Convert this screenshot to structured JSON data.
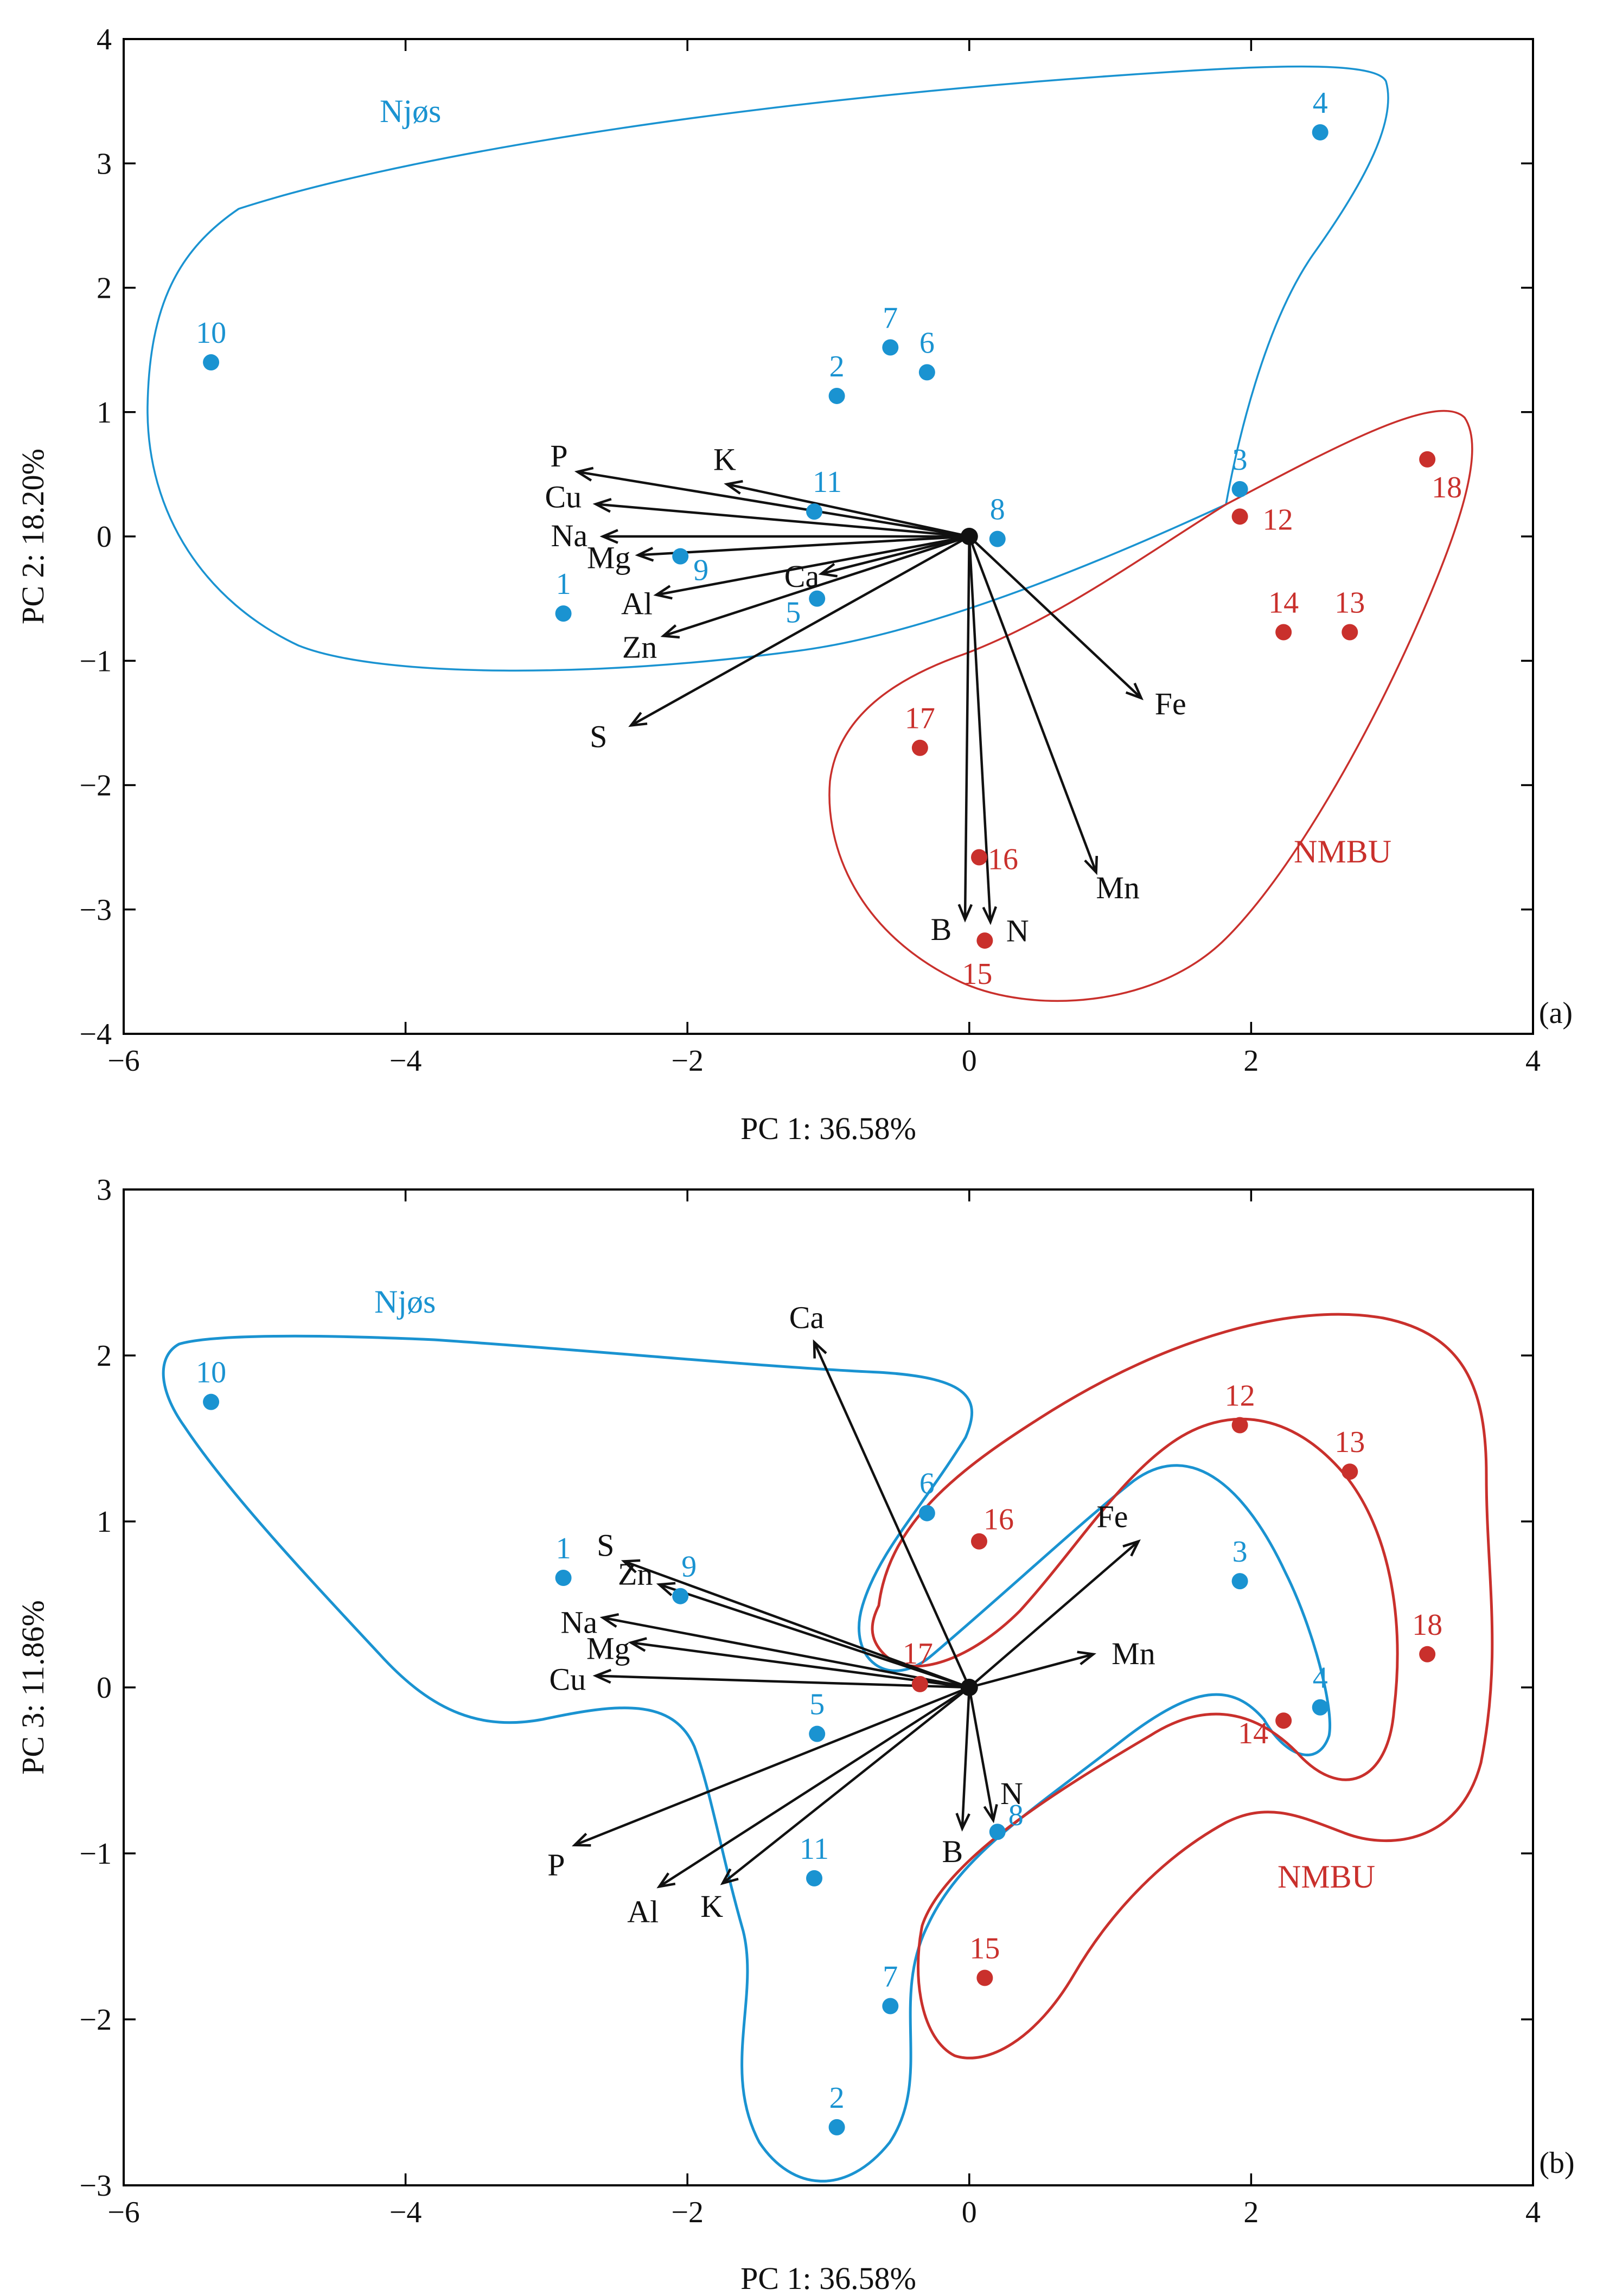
{
  "colors": {
    "njos": "#1a93d1",
    "nmbu": "#c9302c",
    "ink": "#111111"
  },
  "chart_data": [
    {
      "type": "scatter",
      "panel": "(a)",
      "xlabel": "PC 1: 36.58%",
      "ylabel": "PC 2: 18.20%",
      "xlim": [
        -6,
        4
      ],
      "ylim": [
        -4,
        4
      ],
      "xticks": [
        -6,
        -4,
        -2,
        0,
        2,
        4
      ],
      "yticks": [
        -4,
        -3,
        -2,
        -1,
        0,
        1,
        2,
        3,
        4
      ],
      "groups": [
        {
          "name": "Njøs",
          "color_key": "njos",
          "points": [
            {
              "id": "1",
              "x": -2.88,
              "y": -0.62
            },
            {
              "id": "2",
              "x": -0.94,
              "y": 1.13
            },
            {
              "id": "3",
              "x": 1.92,
              "y": 0.38
            },
            {
              "id": "4",
              "x": 2.49,
              "y": 3.25
            },
            {
              "id": "5",
              "x": -1.08,
              "y": -0.5
            },
            {
              "id": "6",
              "x": -0.3,
              "y": 1.32
            },
            {
              "id": "7",
              "x": -0.56,
              "y": 1.52
            },
            {
              "id": "8",
              "x": 0.2,
              "y": -0.02
            },
            {
              "id": "9",
              "x": -2.05,
              "y": -0.16
            },
            {
              "id": "10",
              "x": -5.38,
              "y": 1.4
            },
            {
              "id": "11",
              "x": -1.1,
              "y": 0.2
            }
          ]
        },
        {
          "name": "NMBU",
          "color_key": "nmbu",
          "points": [
            {
              "id": "12",
              "x": 1.92,
              "y": 0.16
            },
            {
              "id": "13",
              "x": 2.7,
              "y": -0.77
            },
            {
              "id": "14",
              "x": 2.23,
              "y": -0.77
            },
            {
              "id": "15",
              "x": 0.11,
              "y": -3.25
            },
            {
              "id": "16",
              "x": 0.07,
              "y": -2.58
            },
            {
              "id": "17",
              "x": -0.35,
              "y": -1.7
            },
            {
              "id": "18",
              "x": 3.25,
              "y": 0.62
            }
          ]
        }
      ],
      "loadings": [
        {
          "name": "P",
          "x": -2.78,
          "y": 0.52
        },
        {
          "name": "K",
          "x": -1.72,
          "y": 0.42
        },
        {
          "name": "Cu",
          "x": -2.65,
          "y": 0.26
        },
        {
          "name": "Na",
          "x": -2.6,
          "y": 0.0
        },
        {
          "name": "Mg",
          "x": -2.35,
          "y": -0.15
        },
        {
          "name": "Ca",
          "x": -1.05,
          "y": -0.3
        },
        {
          "name": "Al",
          "x": -2.22,
          "y": -0.47
        },
        {
          "name": "Zn",
          "x": -2.17,
          "y": -0.8
        },
        {
          "name": "S",
          "x": -2.4,
          "y": -1.52
        },
        {
          "name": "Fe",
          "x": 1.22,
          "y": -1.3
        },
        {
          "name": "Mn",
          "x": 0.9,
          "y": -2.7
        },
        {
          "name": "B",
          "x": -0.03,
          "y": -3.08
        },
        {
          "name": "N",
          "x": 0.15,
          "y": -3.1
        }
      ]
    },
    {
      "type": "scatter",
      "panel": "(b)",
      "xlabel": "PC 1: 36.58%",
      "ylabel": "PC 3: 11.86%",
      "xlim": [
        -6,
        4
      ],
      "ylim": [
        -3,
        3
      ],
      "xticks": [
        -6,
        -4,
        -2,
        0,
        2,
        4
      ],
      "yticks": [
        -3,
        -2,
        -1,
        0,
        1,
        2,
        3
      ],
      "groups": [
        {
          "name": "Njøs",
          "color_key": "njos",
          "points": [
            {
              "id": "1",
              "x": -2.88,
              "y": 0.66
            },
            {
              "id": "2",
              "x": -0.94,
              "y": -2.65
            },
            {
              "id": "3",
              "x": 1.92,
              "y": 0.64
            },
            {
              "id": "4",
              "x": 2.49,
              "y": -0.12
            },
            {
              "id": "5",
              "x": -1.08,
              "y": -0.28
            },
            {
              "id": "6",
              "x": -0.3,
              "y": 1.05
            },
            {
              "id": "7",
              "x": -0.56,
              "y": -1.92
            },
            {
              "id": "8",
              "x": 0.2,
              "y": -0.87
            },
            {
              "id": "9",
              "x": -2.05,
              "y": 0.55
            },
            {
              "id": "10",
              "x": -5.38,
              "y": 1.72
            },
            {
              "id": "11",
              "x": -1.1,
              "y": -1.15
            }
          ]
        },
        {
          "name": "NMBU",
          "color_key": "nmbu",
          "points": [
            {
              "id": "12",
              "x": 1.92,
              "y": 1.58
            },
            {
              "id": "13",
              "x": 2.7,
              "y": 1.3
            },
            {
              "id": "14",
              "x": 2.23,
              "y": -0.2
            },
            {
              "id": "15",
              "x": 0.11,
              "y": -1.75
            },
            {
              "id": "16",
              "x": 0.07,
              "y": 0.88
            },
            {
              "id": "17",
              "x": -0.35,
              "y": 0.02
            },
            {
              "id": "18",
              "x": 3.25,
              "y": 0.2
            }
          ]
        }
      ],
      "loadings": [
        {
          "name": "Ca",
          "x": -1.1,
          "y": 2.08
        },
        {
          "name": "S",
          "x": -2.45,
          "y": 0.76
        },
        {
          "name": "Zn",
          "x": -2.2,
          "y": 0.62
        },
        {
          "name": "Na",
          "x": -2.6,
          "y": 0.42
        },
        {
          "name": "Mg",
          "x": -2.4,
          "y": 0.27
        },
        {
          "name": "Cu",
          "x": -2.65,
          "y": 0.07
        },
        {
          "name": "Fe",
          "x": 1.2,
          "y": 0.88
        },
        {
          "name": "Mn",
          "x": 0.88,
          "y": 0.2
        },
        {
          "name": "N",
          "x": 0.17,
          "y": -0.8
        },
        {
          "name": "B",
          "x": -0.05,
          "y": -0.85
        },
        {
          "name": "P",
          "x": -2.8,
          "y": -0.95
        },
        {
          "name": "Al",
          "x": -2.2,
          "y": -1.2
        },
        {
          "name": "K",
          "x": -1.75,
          "y": -1.18
        }
      ]
    }
  ]
}
